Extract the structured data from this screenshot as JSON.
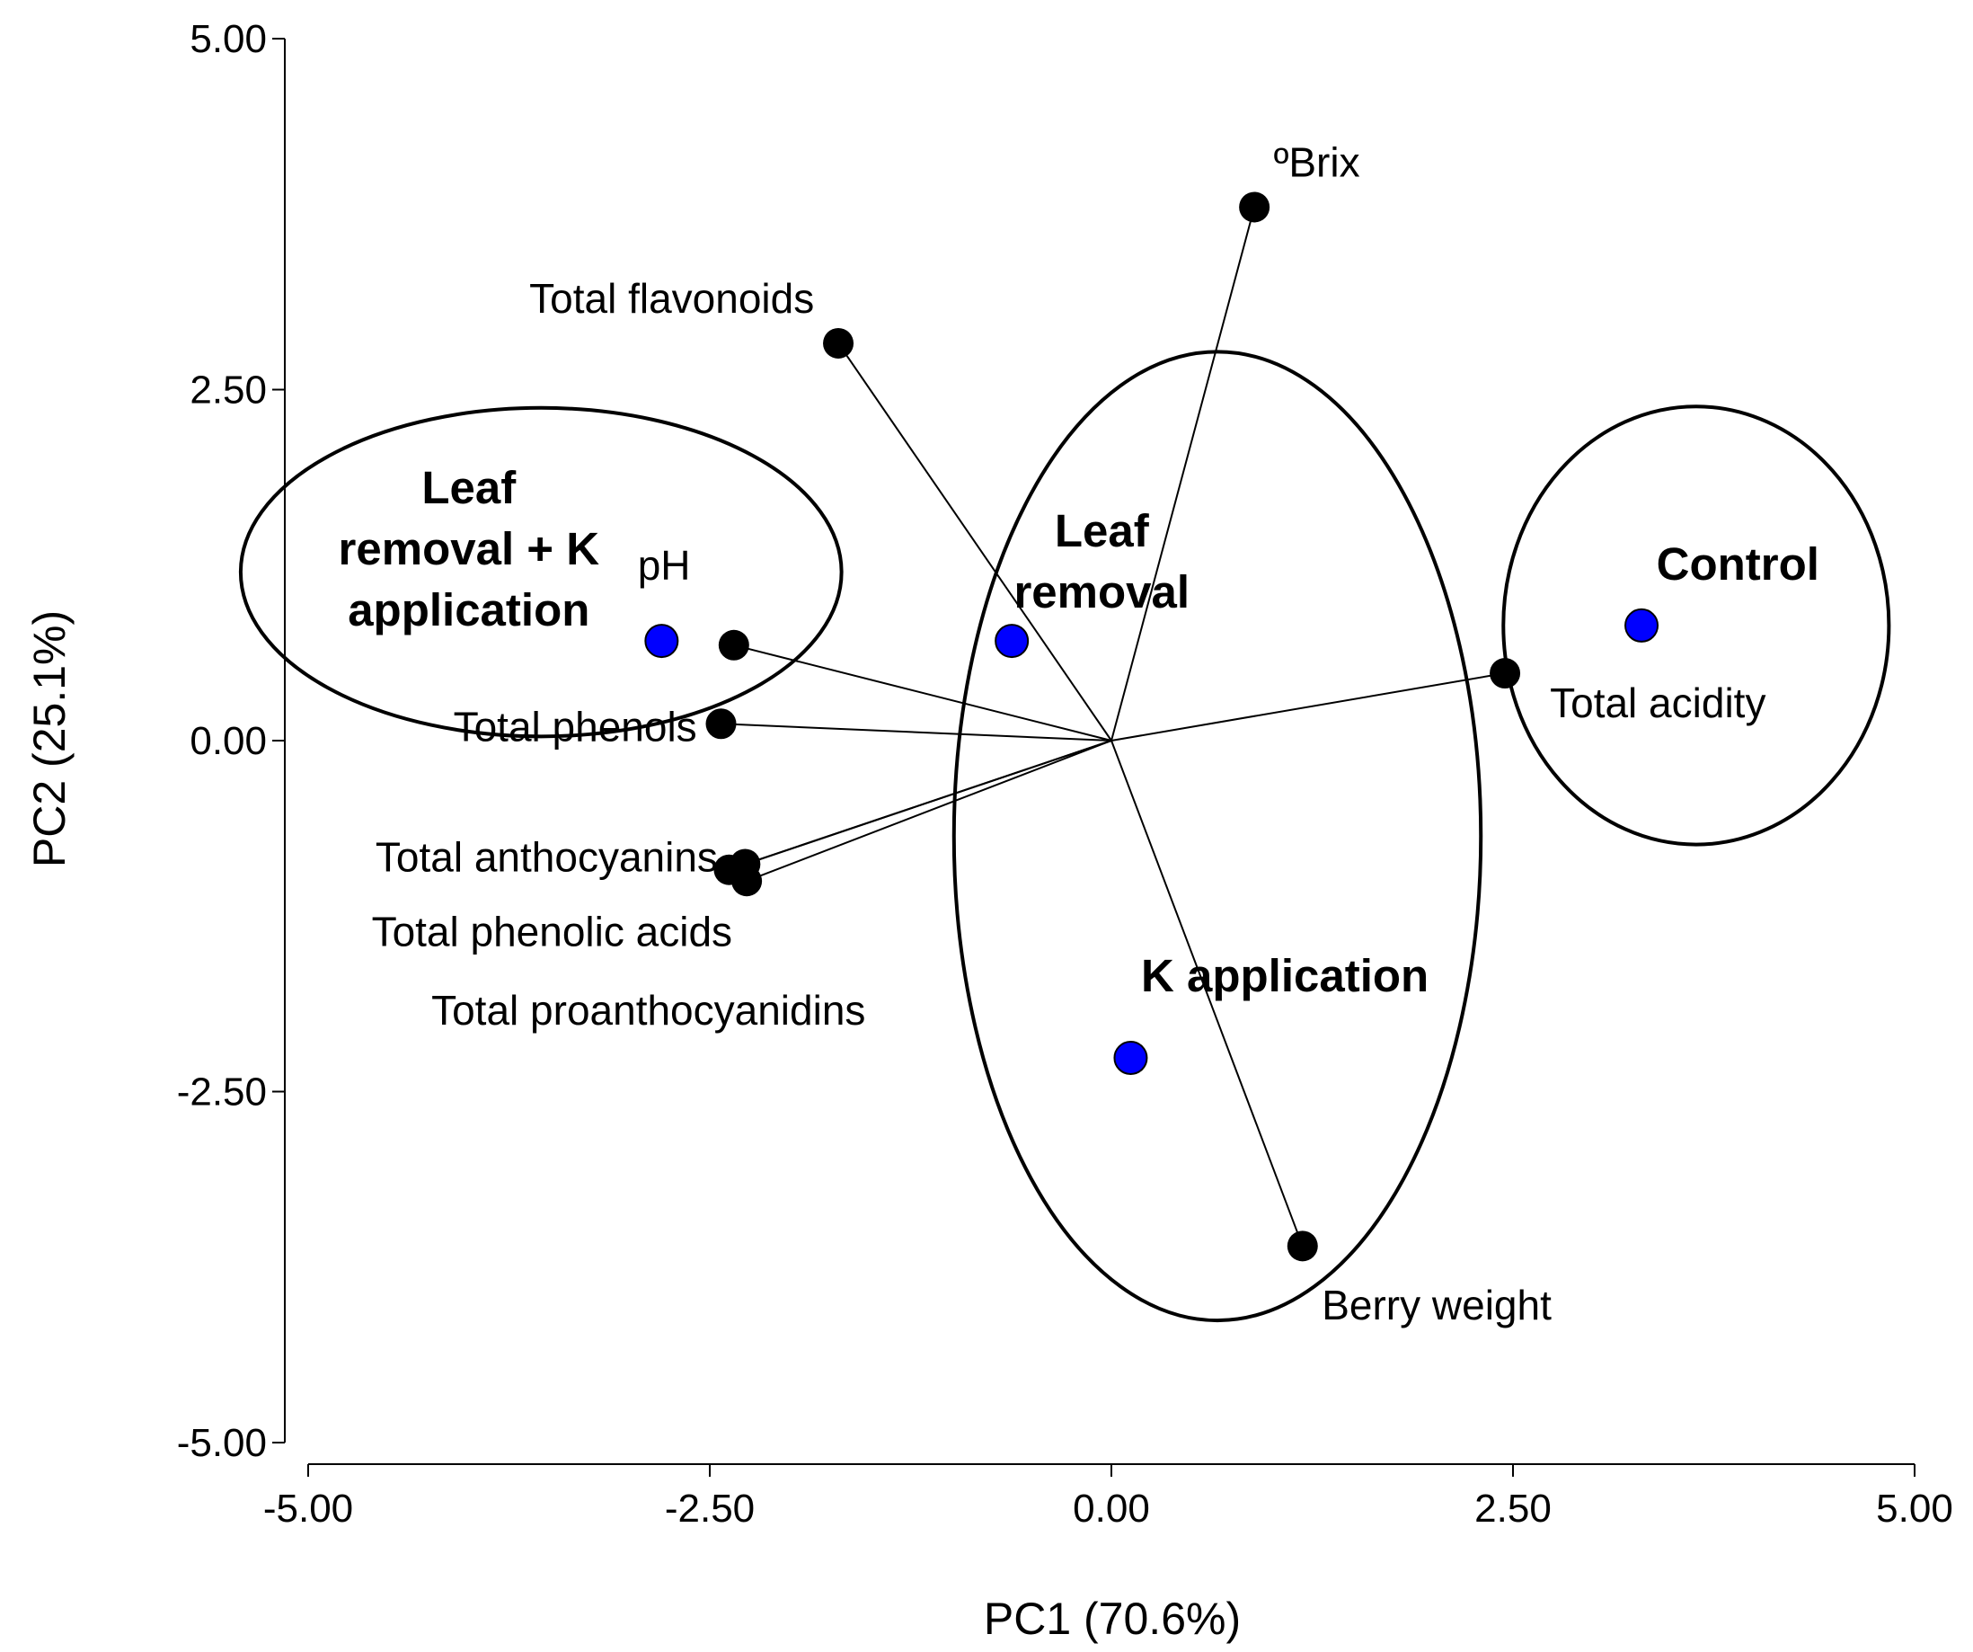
{
  "chart_data": {
    "type": "scatter",
    "subtype": "pca-biplot",
    "title": "",
    "xlabel": "PC1 (70.6%)",
    "ylabel": "PC2 (25.1%)",
    "xlim": [
      -5,
      5
    ],
    "ylim": [
      -5,
      5
    ],
    "grid": false,
    "x_ticks": [
      {
        "value": -5,
        "label": "-5.00"
      },
      {
        "value": -2.5,
        "label": "-2.50"
      },
      {
        "value": 0,
        "label": "0.00"
      },
      {
        "value": 2.5,
        "label": "2.50"
      },
      {
        "value": 5,
        "label": "5.00"
      }
    ],
    "y_ticks": [
      {
        "value": 5,
        "label": "5.00"
      },
      {
        "value": 2.5,
        "label": "2.50"
      },
      {
        "value": 0,
        "label": "0.00"
      },
      {
        "value": -2.5,
        "label": "-2.50"
      },
      {
        "value": -5,
        "label": "-5.00"
      }
    ],
    "loadings": [
      {
        "name": "ºBrix",
        "x": 0.89,
        "y": 3.8,
        "label_dx": 0.12,
        "label_dy": 0.32,
        "anchor": "start"
      },
      {
        "name": "Total flavonoids",
        "x": -1.7,
        "y": 2.83,
        "label_dx": -0.15,
        "label_dy": 0.32,
        "anchor": "end"
      },
      {
        "name": "pH",
        "x": -2.35,
        "y": 0.68,
        "label_dx": -0.27,
        "label_dy": 0.57,
        "anchor": "end"
      },
      {
        "name": "Total phenols",
        "x": -2.43,
        "y": 0.12,
        "label_dx": -0.15,
        "label_dy": -0.02,
        "anchor": "end"
      },
      {
        "name": "Total anthocyanins",
        "x": -2.28,
        "y": -0.88,
        "label_dx": -0.17,
        "label_dy": 0.05,
        "anchor": "end"
      },
      {
        "name": "Total phenolic acids",
        "x": -2.27,
        "y": -1.0,
        "label_dx": -0.09,
        "label_dy": -0.36,
        "anchor": "end"
      },
      {
        "name": "Total proanthocyanidins",
        "x": -2.38,
        "y": -0.92,
        "label_dx": 0.85,
        "label_dy": -1.0,
        "anchor": "end"
      },
      {
        "name": "Total acidity",
        "x": 2.45,
        "y": 0.48,
        "label_dx": 0.28,
        "label_dy": -0.21,
        "anchor": "start"
      },
      {
        "name": "Berry weight",
        "x": 1.19,
        "y": -3.6,
        "label_dx": 0.12,
        "label_dy": -0.42,
        "anchor": "start"
      }
    ],
    "scores": [
      {
        "group": "Leaf removal + K application",
        "x": -2.8,
        "y": 0.71
      },
      {
        "group": "Leaf removal",
        "x": -0.62,
        "y": 0.71
      },
      {
        "group": "Control",
        "x": 3.3,
        "y": 0.82
      },
      {
        "group": "K application",
        "x": 0.12,
        "y": -2.26
      }
    ],
    "groups": [
      {
        "name": "Leaf removal + K application",
        "lines": [
          "Leaf",
          "removal + K",
          "application"
        ],
        "label_x": -4.0,
        "label_y": 1.37,
        "ellipse": {
          "cx": -3.55,
          "cy": 1.2,
          "rx": 1.87,
          "ry": 1.17
        }
      },
      {
        "name": "Leaf removal",
        "lines": [
          "Leaf",
          "removal"
        ],
        "label_x": -0.06,
        "label_y": 1.28,
        "ellipse": {
          "cx": 0.66,
          "cy": -0.68,
          "rx": 1.64,
          "ry": 3.45
        }
      },
      {
        "name": "Control",
        "lines": [
          "Control"
        ],
        "label_x": 3.9,
        "label_y": 1.26,
        "ellipse": {
          "cx": 3.64,
          "cy": 0.82,
          "rx": 1.2,
          "ry": 1.56
        }
      },
      {
        "name": "K application",
        "lines": [
          "K application"
        ],
        "label_x": 1.08,
        "label_y": -1.67,
        "ellipse": null
      }
    ],
    "colors": {
      "score": "#0000ff",
      "loading": "#000000",
      "axis": "#000000"
    }
  }
}
